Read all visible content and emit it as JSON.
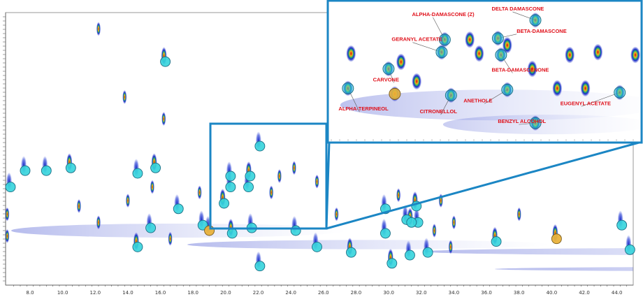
{
  "chart_data": {
    "type": "heatmap",
    "title": "",
    "xlabel": "",
    "ylabel": "",
    "x_range": [
      6.5,
      45.0
    ],
    "x_ticks": [
      "8.0",
      "10.0",
      "12.0",
      "14.0",
      "16.0",
      "18.0",
      "20.0",
      "22.0",
      "24.0",
      "26.0",
      "28.0",
      "30.0",
      "32.0",
      "34.0",
      "36.0",
      "38.0",
      "40.0",
      "42.0",
      "44.0"
    ],
    "colors": {
      "marker": "#35d4dc",
      "highlight": "#e9b23c",
      "zoom_box": "#1b86c4",
      "label": "#e0101a",
      "blob": "#1a2bc8"
    },
    "main_markers": [
      {
        "x": 16.3,
        "y": 0.18
      },
      {
        "x": 7.7,
        "y": 0.58
      },
      {
        "x": 9.0,
        "y": 0.58
      },
      {
        "x": 10.5,
        "y": 0.57
      },
      {
        "x": 6.8,
        "y": 0.64
      },
      {
        "x": 14.6,
        "y": 0.59
      },
      {
        "x": 15.7,
        "y": 0.57
      },
      {
        "x": 22.1,
        "y": 0.49
      },
      {
        "x": 20.3,
        "y": 0.6
      },
      {
        "x": 21.5,
        "y": 0.6
      },
      {
        "x": 20.3,
        "y": 0.64
      },
      {
        "x": 21.4,
        "y": 0.64
      },
      {
        "x": 19.9,
        "y": 0.7
      },
      {
        "x": 17.1,
        "y": 0.72
      },
      {
        "x": 15.4,
        "y": 0.79
      },
      {
        "x": 14.6,
        "y": 0.86
      },
      {
        "x": 18.6,
        "y": 0.78
      },
      {
        "x": 21.6,
        "y": 0.79
      },
      {
        "x": 20.4,
        "y": 0.81
      },
      {
        "x": 24.3,
        "y": 0.8
      },
      {
        "x": 29.8,
        "y": 0.72
      },
      {
        "x": 31.7,
        "y": 0.71
      },
      {
        "x": 31.1,
        "y": 0.76
      },
      {
        "x": 31.8,
        "y": 0.77
      },
      {
        "x": 31.4,
        "y": 0.77
      },
      {
        "x": 29.8,
        "y": 0.81
      },
      {
        "x": 25.6,
        "y": 0.86
      },
      {
        "x": 36.6,
        "y": 0.84
      },
      {
        "x": 44.3,
        "y": 0.78
      },
      {
        "x": 44.8,
        "y": 0.87
      },
      {
        "x": 27.7,
        "y": 0.88
      },
      {
        "x": 32.4,
        "y": 0.88
      },
      {
        "x": 31.3,
        "y": 0.89
      },
      {
        "x": 30.2,
        "y": 0.92
      },
      {
        "x": 22.1,
        "y": 0.93
      }
    ],
    "main_highlights": [
      {
        "x": 19.0,
        "y": 0.8
      },
      {
        "x": 40.3,
        "y": 0.83
      }
    ],
    "zoom_markers": [
      {
        "x": 0.06,
        "y": 0.62,
        "label": "ALPHA-TERPINEOL"
      },
      {
        "x": 0.19,
        "y": 0.48,
        "label": "CARVONE"
      },
      {
        "x": 0.36,
        "y": 0.36,
        "label": "GERANYL ACETATE"
      },
      {
        "x": 0.37,
        "y": 0.27,
        "label": "ALPHA-DAMASCONE (Z)"
      },
      {
        "x": 0.39,
        "y": 0.67,
        "label": "CITRONELLOL"
      },
      {
        "x": 0.54,
        "y": 0.26,
        "label": "BETA-DAMASCONE"
      },
      {
        "x": 0.55,
        "y": 0.38,
        "label": "BETA-DAMASCENONE"
      },
      {
        "x": 0.57,
        "y": 0.63,
        "label": "ANETHOLE"
      },
      {
        "x": 0.66,
        "y": 0.13,
        "label": "DELTA DAMASCONE"
      },
      {
        "x": 0.66,
        "y": 0.87,
        "label": "BENZYL ALCOHOL"
      },
      {
        "x": 0.93,
        "y": 0.65,
        "label": "EUGENYL ACETATE"
      }
    ],
    "zoom_highlights": [
      {
        "x": 0.21,
        "y": 0.66
      }
    ],
    "zoom_labels": [
      {
        "text": "ALPHA-DAMASCONE (Z)",
        "x": 0.265,
        "y": 0.1,
        "lx": 0.37,
        "ly": 0.27
      },
      {
        "text": "DELTA DAMASCONE",
        "x": 0.52,
        "y": 0.06,
        "lx": 0.66,
        "ly": 0.13
      },
      {
        "text": "BETA-DAMASCONE",
        "x": 0.6,
        "y": 0.22,
        "lx": 0.54,
        "ly": 0.26
      },
      {
        "text": "GERANYL ACETATE",
        "x": 0.2,
        "y": 0.28,
        "lx": 0.36,
        "ly": 0.36
      },
      {
        "text": "BETA-DAMASCENONE",
        "x": 0.52,
        "y": 0.5,
        "lx": 0.55,
        "ly": 0.38
      },
      {
        "text": "CARVONE",
        "x": 0.14,
        "y": 0.57,
        "lx": 0.19,
        "ly": 0.48
      },
      {
        "text": "ANETHOLE",
        "x": 0.43,
        "y": 0.72,
        "lx": 0.57,
        "ly": 0.63
      },
      {
        "text": "EUGENYL ACETATE",
        "x": 0.74,
        "y": 0.74,
        "lx": 0.93,
        "ly": 0.65
      },
      {
        "text": "ALPHA-TERPINEOL",
        "x": 0.03,
        "y": 0.78,
        "lx": 0.06,
        "ly": 0.62
      },
      {
        "text": "CITRONELLOL",
        "x": 0.29,
        "y": 0.8,
        "lx": 0.39,
        "ly": 0.67
      },
      {
        "text": "BENZYL ALCOHOL",
        "x": 0.54,
        "y": 0.87,
        "lx": 0.66,
        "ly": 0.87
      }
    ]
  }
}
